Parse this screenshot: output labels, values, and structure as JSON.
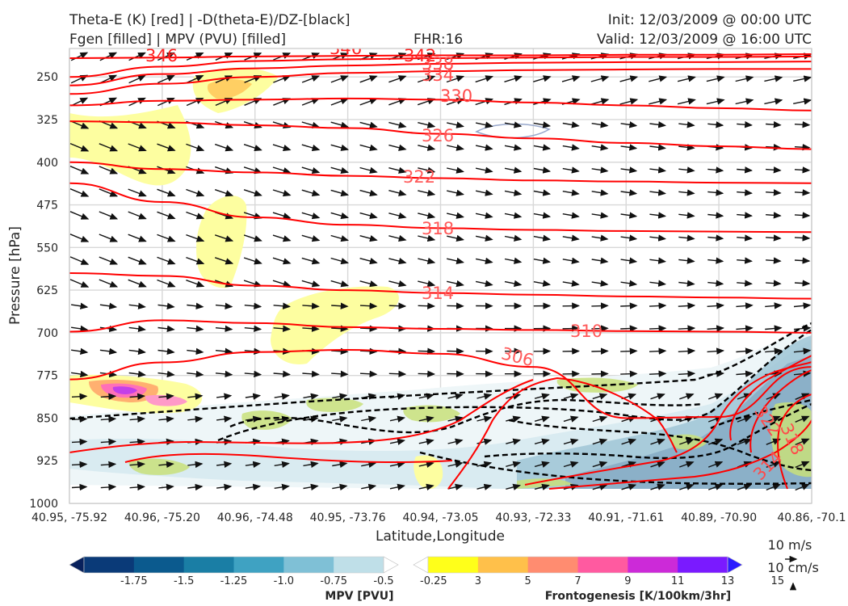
{
  "header": {
    "line1_left": "Theta-E (K) [red] | -D(theta-E)/DZ-[black]",
    "line2_left": "Fgen [filled] | MPV (PVU) [filled]",
    "fhr": "FHR:16",
    "init": "Init: 12/03/2009 @ 00:00 UTC",
    "valid": "Valid: 12/03/2009 @ 16:00 UTC"
  },
  "chart_data": {
    "type": "cross-section",
    "xlabel": "Latitude,Longitude",
    "ylabel": "Pressure [hPa]",
    "x_ticks": [
      "40.95, -75.92",
      "40.96, -75.20",
      "40.96, -74.48",
      "40.95, -73.76",
      "40.94, -73.05",
      "40.93, -72.33",
      "40.91, -71.61",
      "40.89, -70.90",
      "40.86, -70.1"
    ],
    "y_ticks": [
      250,
      325,
      400,
      475,
      550,
      625,
      700,
      775,
      850,
      925,
      1000
    ],
    "ylim": [
      1000,
      200
    ],
    "grid": true,
    "theta_e_contours": [
      {
        "value": 346,
        "label": "346",
        "pressure": [
          217,
          216,
          214,
          213,
          212,
          212,
          211,
          211,
          210
        ],
        "color": "#ff0000"
      },
      {
        "value": 342,
        "label": "342",
        "pressure": [
          250,
          232,
          222,
          219,
          217,
          216,
          215,
          215,
          214
        ]
      },
      {
        "value": 338,
        "label": "338",
        "pressure": [
          265,
          245,
          235,
          230,
          227,
          225,
          224,
          224,
          223
        ]
      },
      {
        "value": 334,
        "label": "334",
        "pressure": [
          280,
          262,
          250,
          243,
          240,
          238,
          237,
          236,
          236
        ]
      },
      {
        "value": 330,
        "label": "330",
        "pressure": [
          300,
          292,
          290,
          288,
          290,
          295,
          300,
          305,
          309
        ]
      },
      {
        "value": 326,
        "label": "326",
        "pressure": [
          328,
          330,
          335,
          340,
          350,
          358,
          366,
          372,
          377
        ]
      },
      {
        "value": 322,
        "label": "322",
        "pressure": [
          400,
          412,
          418,
          424,
          428,
          432,
          434,
          436,
          437
        ]
      },
      {
        "value": 318,
        "label": "318",
        "pressure": [
          437,
          470,
          497,
          510,
          516,
          519,
          521,
          522,
          523
        ]
      },
      {
        "value": 314,
        "label": "314",
        "pressure": [
          595,
          600,
          617,
          625,
          630,
          633,
          636,
          638,
          640
        ]
      },
      {
        "value": 310,
        "label": "310",
        "pressure": [
          698,
          678,
          683,
          690,
          693,
          695,
          697,
          698,
          700
        ]
      },
      {
        "value": 306,
        "label": "306",
        "pressure": [
          782,
          752,
          734,
          730,
          737,
          760,
          850,
          848,
          760
        ]
      }
    ],
    "contour_labels": [
      "346",
      "346",
      "342",
      "338",
      "334",
      "330",
      "326",
      "322",
      "318",
      "314",
      "310",
      "306",
      "322",
      "318",
      "314"
    ],
    "mpv_colorbar": {
      "label": "MPV [PVU]",
      "ticks": [
        "-1.75",
        "-1.5",
        "-1.25",
        "-1.0",
        "-0.75",
        "-0.5",
        "-0.25"
      ],
      "colors": [
        "#08215c",
        "#0a3a78",
        "#0b5a8e",
        "#1a7ea5",
        "#3fa2c2",
        "#7fc0d6",
        "#bfdfe8",
        "#ffffff"
      ]
    },
    "fgen_colorbar": {
      "label": "Frontogenesis [K/100km/3hr]",
      "ticks": [
        "3",
        "5",
        "7",
        "9",
        "11",
        "13",
        "15"
      ],
      "colors": [
        "#ffffff",
        "#ffff1a",
        "#ffc04a",
        "#ff8c70",
        "#ff5aa0",
        "#cc2ad8",
        "#7a1aff",
        "#2a1aff"
      ]
    },
    "wind_reference": {
      "horizontal": "10 m/s",
      "vertical": "10 cm/s"
    }
  },
  "colors": {
    "theta_e": "#ff0000",
    "theta_e_label": "#ff5a5a",
    "ddz": "#000000",
    "grid": "#d8d8d8",
    "axis": "#c8c8c8"
  }
}
